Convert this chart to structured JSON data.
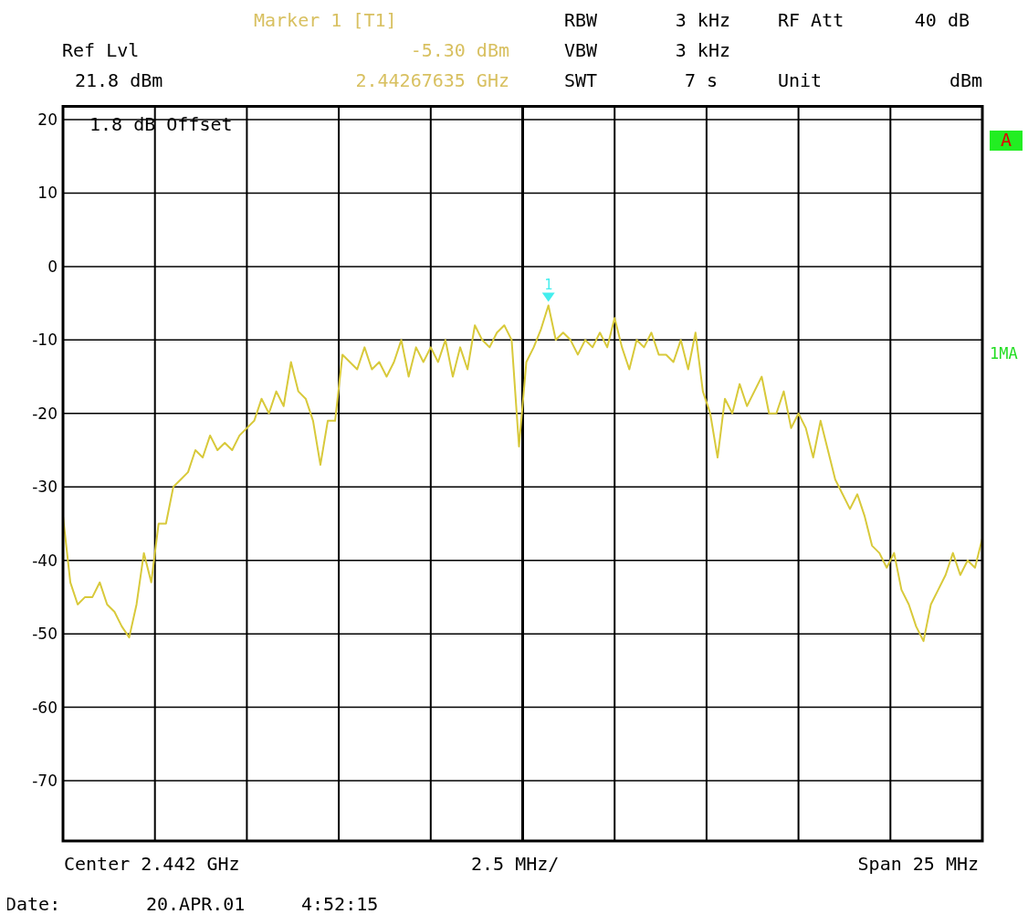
{
  "chart_data": {
    "type": "line",
    "grid": true,
    "marker": "none",
    "line_style": "solid",
    "tick_labels": "y",
    "ylim": [
      -78.2,
      21.8
    ],
    "categories": [
      null,
      null,
      null,
      null,
      null,
      null,
      null,
      null,
      null,
      null,
      null,
      null,
      null,
      null,
      null,
      null,
      null,
      null,
      null,
      null,
      null,
      null,
      null,
      null,
      null,
      null,
      null,
      null,
      null,
      null,
      null,
      null,
      null,
      null,
      null,
      null,
      null,
      null,
      null,
      null,
      null,
      null,
      null,
      null,
      null,
      null,
      null,
      null,
      null,
      null,
      null,
      null,
      null,
      null,
      null,
      null,
      null,
      null,
      null,
      null,
      null,
      null,
      null,
      null,
      null,
      null,
      null,
      null,
      null,
      null,
      null,
      null,
      null,
      null,
      null,
      null,
      null,
      null,
      null,
      null,
      null,
      null,
      null,
      null,
      null,
      null,
      null,
      null,
      null,
      null,
      null,
      null,
      null,
      null,
      null,
      null,
      null,
      null,
      null,
      null,
      null,
      null,
      null,
      null,
      null,
      null,
      null,
      null,
      null,
      null,
      null,
      null,
      null,
      null,
      null,
      null,
      null,
      null,
      null,
      null,
      null,
      null,
      null,
      null,
      null,
      null
    ],
    "yticks": [
      20,
      10,
      0,
      -10,
      -20,
      -30,
      -40,
      -50,
      -60,
      -70
    ],
    "series": [
      {
        "color": "#d8c93a",
        "values": [
          -34,
          -43,
          -46,
          -45,
          -45,
          -43,
          -46,
          -47,
          -49,
          -50.5,
          -46,
          -39,
          -43,
          -35,
          -35,
          -30,
          -29,
          -28,
          -25,
          -26,
          -23,
          -25,
          -24,
          -25,
          -23,
          -22,
          -21,
          -18,
          -20,
          -17,
          -19,
          -13,
          -17,
          -18,
          -21,
          -27,
          -21,
          -21,
          -12,
          -13,
          -14,
          -11,
          -14,
          -13,
          -15,
          -13,
          -10,
          -15,
          -11,
          -13,
          -11,
          -13,
          -10,
          -15,
          -11,
          -14,
          -8,
          -10,
          -11,
          -9,
          -8,
          -10,
          -24.5,
          -13,
          -11,
          -8.5,
          -5.3,
          -10,
          -9,
          -10,
          -12,
          -10,
          -11,
          -9,
          -11,
          -7,
          -11,
          -14,
          -10,
          -11,
          -9,
          -12,
          -12,
          -13,
          -10,
          -14,
          -9,
          -17,
          -20,
          -26,
          -18,
          -20,
          -16,
          -19,
          -17,
          -15,
          -20,
          -20,
          -17,
          -22,
          -20,
          -22,
          -26,
          -21,
          -25,
          -29,
          -31,
          -33,
          -31,
          -34,
          -38,
          -39,
          -41,
          -39,
          -44,
          -46,
          -49,
          -51,
          -46,
          -44,
          -42,
          -39,
          -42,
          -40,
          -41,
          -37
        ]
      }
    ],
    "annotations": [
      "Ref Lvl",
      "21.8 dBm",
      "Marker 1 [T1]",
      "-5.30 dBm",
      "2.44267635 GHz",
      "RBW",
      "3 kHz",
      "VBW",
      "3 kHz",
      "SWT",
      "7 s",
      "RF Att",
      "40 dB",
      "Unit",
      "dBm",
      "1.8 dB Offset",
      "A",
      "1MA",
      "Center 2.442 GHz",
      "2.5 MHz/",
      "Span 25 MHz",
      "Date:",
      "20.APR.01",
      "4:52:15",
      {
        "text": "1",
        "y": -5.3
      }
    ]
  }
}
